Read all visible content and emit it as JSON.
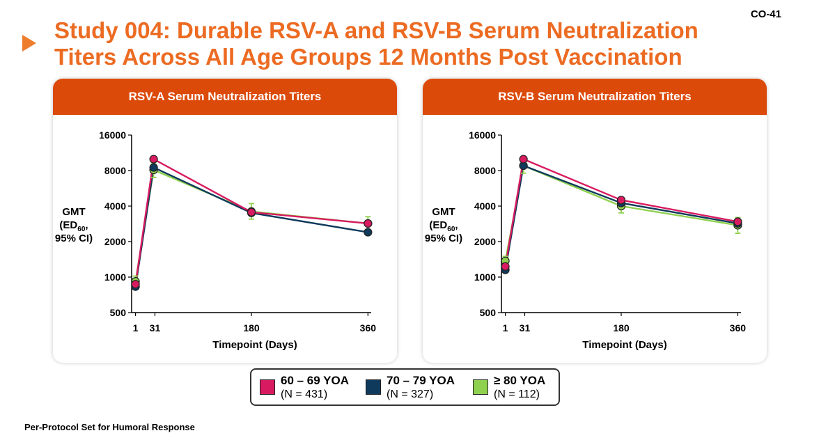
{
  "slide_id": "CO-41",
  "title": "Study 004: Durable RSV-A and RSV-B Serum Neutralization Titers Across All Age Groups 12 Months Post Vaccination",
  "footnote": "Per-Protocol Set for Humoral Response",
  "legend": [
    {
      "label": "60 – 69 YOA",
      "n": "(N = 431)",
      "color": "#d81b60"
    },
    {
      "label": "70 – 79 YOA",
      "n": "(N = 327)",
      "color": "#0f3a5c"
    },
    {
      "label": "≥ 80 YOA",
      "n": "(N = 112)",
      "color": "#8fd14f"
    }
  ],
  "chart_data": [
    {
      "type": "line",
      "title": "RSV-A Serum Neutralization Titers",
      "xlabel": "Timepoint (Days)",
      "ylabel": [
        "GMT",
        "(ED",
        "60",
        ",",
        "95% CI)"
      ],
      "x_ticks": [
        1,
        31,
        180,
        360
      ],
      "y_ticks": [
        "500",
        "1000",
        "2000",
        "4000",
        "8000",
        "16000"
      ],
      "y_scale": "log2",
      "ylim": [
        500,
        16000
      ],
      "xlim": [
        -5,
        365
      ],
      "series": [
        {
          "color": "#d81b60",
          "points": [
            {
              "x": 1,
              "y": 870
            },
            {
              "x": 29,
              "y": 10000
            },
            {
              "x": 180,
              "y": 3550
            },
            {
              "x": 360,
              "y": 2850
            }
          ]
        },
        {
          "color": "#0f3a5c",
          "points": [
            {
              "x": 1,
              "y": 830
            },
            {
              "x": 29,
              "y": 8500
            },
            {
              "x": 180,
              "y": 3500
            },
            {
              "x": 360,
              "y": 2400
            }
          ]
        },
        {
          "color": "#8fd14f",
          "points": [
            {
              "x": 1,
              "y": 920
            },
            {
              "x": 29,
              "y": 8100
            },
            {
              "x": 180,
              "y": 3600
            },
            {
              "x": 360,
              "y": 2850
            }
          ],
          "error": [
            [
              820,
              1020
            ],
            [
              7000,
              9300
            ],
            [
              3100,
              4200
            ],
            [
              2450,
              3250
            ]
          ]
        }
      ]
    },
    {
      "type": "line",
      "title": "RSV-B Serum Neutralization Titers",
      "xlabel": "Timepoint (Days)",
      "ylabel": [
        "GMT",
        "(ED",
        "60",
        ",",
        "95% CI)"
      ],
      "x_ticks": [
        1,
        31,
        180,
        360
      ],
      "y_ticks": [
        "500",
        "1000",
        "2000",
        "4000",
        "8000",
        "16000"
      ],
      "y_scale": "log2",
      "ylim": [
        500,
        16000
      ],
      "xlim": [
        -5,
        365
      ],
      "series": [
        {
          "color": "#d81b60",
          "points": [
            {
              "x": 1,
              "y": 1230
            },
            {
              "x": 29,
              "y": 10000
            },
            {
              "x": 180,
              "y": 4500
            },
            {
              "x": 360,
              "y": 2950
            }
          ]
        },
        {
          "color": "#0f3a5c",
          "points": [
            {
              "x": 1,
              "y": 1150
            },
            {
              "x": 29,
              "y": 8800
            },
            {
              "x": 180,
              "y": 4250
            },
            {
              "x": 360,
              "y": 2850
            }
          ]
        },
        {
          "color": "#8fd14f",
          "points": [
            {
              "x": 1,
              "y": 1370
            },
            {
              "x": 29,
              "y": 8800
            },
            {
              "x": 180,
              "y": 4000
            },
            {
              "x": 360,
              "y": 2750
            }
          ],
          "error": [
            [
              1250,
              1500
            ],
            [
              7600,
              10100
            ],
            [
              3500,
              4600
            ],
            [
              2350,
              3200
            ]
          ]
        }
      ]
    }
  ]
}
